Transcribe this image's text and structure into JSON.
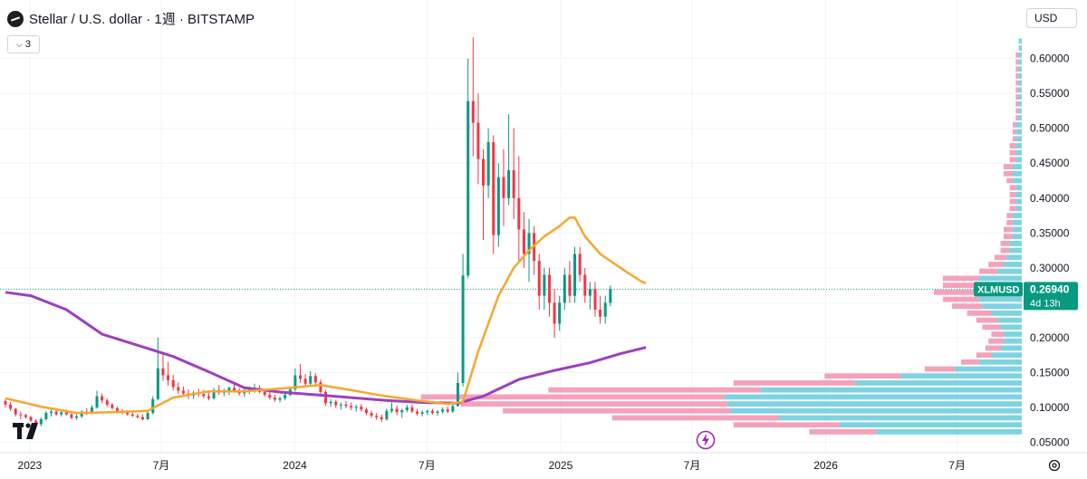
{
  "header": {
    "title": "Stellar / U.S. dollar · 1週 · BITSTAMP",
    "indicator_count": "3",
    "currency": "USD"
  },
  "colors": {
    "up": "#089981",
    "down": "#f23645",
    "ma_fast": "#f7a72e",
    "ma_slow": "#9c40c0",
    "price_label": "#089981",
    "vp_up": "#53c4d8",
    "vp_down": "#f07aa0"
  },
  "price_label": {
    "symbol": "XLMUSD",
    "price": "0.26940",
    "countdown": "4d 13h"
  },
  "chart_data": {
    "type": "candlestick",
    "title": "Stellar / U.S. dollar · 1週 · BITSTAMP",
    "x_range": [
      "2022-11-21",
      "2026-09-28"
    ],
    "y_range": [
      0.035,
      0.645
    ],
    "y_ticks": [
      0.05,
      0.1,
      0.15,
      0.2,
      0.25,
      0.3,
      0.35,
      0.4,
      0.45,
      0.5,
      0.55,
      0.6
    ],
    "y_tick_labels": [
      "0.05000",
      "0.10000",
      "0.15000",
      "0.20000",
      "0.25000",
      "0.30000",
      "0.35000",
      "0.40000",
      "0.45000",
      "0.50000",
      "0.55000",
      "0.60000"
    ],
    "x_ticks": [
      {
        "date": "2023-01-01",
        "label": "2023"
      },
      {
        "date": "2023-07-01",
        "label": "7月"
      },
      {
        "date": "2024-01-01",
        "label": "2024"
      },
      {
        "date": "2024-07-01",
        "label": "7月"
      },
      {
        "date": "2025-01-01",
        "label": "2025"
      },
      {
        "date": "2025-07-01",
        "label": "7月"
      },
      {
        "date": "2026-01-01",
        "label": "2026"
      },
      {
        "date": "2026-07-01",
        "label": "7月"
      }
    ],
    "last_price": 0.2694,
    "candle_ohlc": [
      [
        0.109,
        0.112,
        0.1,
        0.104
      ],
      [
        0.104,
        0.108,
        0.095,
        0.098
      ],
      [
        0.098,
        0.099,
        0.087,
        0.09
      ],
      [
        0.09,
        0.094,
        0.083,
        0.089
      ],
      [
        0.089,
        0.091,
        0.084,
        0.086
      ],
      [
        0.086,
        0.088,
        0.079,
        0.081
      ],
      [
        0.081,
        0.083,
        0.074,
        0.076
      ],
      [
        0.076,
        0.086,
        0.073,
        0.083
      ],
      [
        0.083,
        0.095,
        0.081,
        0.092
      ],
      [
        0.092,
        0.098,
        0.087,
        0.094
      ],
      [
        0.094,
        0.099,
        0.088,
        0.09
      ],
      [
        0.09,
        0.096,
        0.087,
        0.093
      ],
      [
        0.093,
        0.097,
        0.088,
        0.09
      ],
      [
        0.09,
        0.092,
        0.083,
        0.085
      ],
      [
        0.085,
        0.09,
        0.082,
        0.087
      ],
      [
        0.087,
        0.096,
        0.085,
        0.094
      ],
      [
        0.094,
        0.099,
        0.089,
        0.092
      ],
      [
        0.092,
        0.103,
        0.09,
        0.1
      ],
      [
        0.1,
        0.124,
        0.098,
        0.116
      ],
      [
        0.116,
        0.12,
        0.106,
        0.11
      ],
      [
        0.11,
        0.113,
        0.101,
        0.104
      ],
      [
        0.104,
        0.106,
        0.097,
        0.099
      ],
      [
        0.099,
        0.101,
        0.093,
        0.095
      ],
      [
        0.095,
        0.098,
        0.09,
        0.093
      ],
      [
        0.093,
        0.096,
        0.088,
        0.09
      ],
      [
        0.09,
        0.093,
        0.086,
        0.088
      ],
      [
        0.088,
        0.091,
        0.084,
        0.086
      ],
      [
        0.086,
        0.09,
        0.081,
        0.083
      ],
      [
        0.083,
        0.095,
        0.082,
        0.092
      ],
      [
        0.092,
        0.116,
        0.09,
        0.112
      ],
      [
        0.112,
        0.2,
        0.11,
        0.156
      ],
      [
        0.156,
        0.178,
        0.138,
        0.146
      ],
      [
        0.146,
        0.165,
        0.131,
        0.139
      ],
      [
        0.139,
        0.147,
        0.124,
        0.129
      ],
      [
        0.129,
        0.136,
        0.119,
        0.124
      ],
      [
        0.124,
        0.13,
        0.116,
        0.12
      ],
      [
        0.12,
        0.126,
        0.112,
        0.117
      ],
      [
        0.117,
        0.124,
        0.112,
        0.121
      ],
      [
        0.121,
        0.127,
        0.115,
        0.119
      ],
      [
        0.119,
        0.125,
        0.113,
        0.116
      ],
      [
        0.116,
        0.122,
        0.11,
        0.113
      ],
      [
        0.113,
        0.128,
        0.111,
        0.125
      ],
      [
        0.125,
        0.132,
        0.118,
        0.121
      ],
      [
        0.121,
        0.127,
        0.116,
        0.123
      ],
      [
        0.123,
        0.13,
        0.118,
        0.128
      ],
      [
        0.128,
        0.133,
        0.121,
        0.124
      ],
      [
        0.124,
        0.128,
        0.117,
        0.12
      ],
      [
        0.12,
        0.126,
        0.115,
        0.122
      ],
      [
        0.122,
        0.13,
        0.119,
        0.126
      ],
      [
        0.126,
        0.134,
        0.121,
        0.128
      ],
      [
        0.128,
        0.132,
        0.12,
        0.122
      ],
      [
        0.122,
        0.126,
        0.115,
        0.118
      ],
      [
        0.118,
        0.122,
        0.111,
        0.114
      ],
      [
        0.114,
        0.118,
        0.108,
        0.111
      ],
      [
        0.111,
        0.116,
        0.107,
        0.113
      ],
      [
        0.113,
        0.121,
        0.11,
        0.118
      ],
      [
        0.118,
        0.129,
        0.116,
        0.126
      ],
      [
        0.126,
        0.156,
        0.123,
        0.146
      ],
      [
        0.146,
        0.162,
        0.135,
        0.141
      ],
      [
        0.141,
        0.148,
        0.129,
        0.134
      ],
      [
        0.134,
        0.152,
        0.131,
        0.145
      ],
      [
        0.145,
        0.149,
        0.132,
        0.136
      ],
      [
        0.136,
        0.14,
        0.119,
        0.122
      ],
      [
        0.122,
        0.125,
        0.102,
        0.106
      ],
      [
        0.106,
        0.112,
        0.101,
        0.108
      ],
      [
        0.108,
        0.111,
        0.099,
        0.103
      ],
      [
        0.103,
        0.107,
        0.097,
        0.104
      ],
      [
        0.104,
        0.109,
        0.099,
        0.102
      ],
      [
        0.102,
        0.107,
        0.096,
        0.1
      ],
      [
        0.1,
        0.104,
        0.094,
        0.101
      ],
      [
        0.101,
        0.105,
        0.094,
        0.097
      ],
      [
        0.097,
        0.1,
        0.089,
        0.092
      ],
      [
        0.092,
        0.095,
        0.085,
        0.088
      ],
      [
        0.088,
        0.092,
        0.082,
        0.086
      ],
      [
        0.086,
        0.09,
        0.079,
        0.083
      ],
      [
        0.083,
        0.098,
        0.081,
        0.095
      ],
      [
        0.095,
        0.107,
        0.092,
        0.098
      ],
      [
        0.098,
        0.103,
        0.089,
        0.093
      ],
      [
        0.093,
        0.098,
        0.085,
        0.096
      ],
      [
        0.096,
        0.104,
        0.093,
        0.1
      ],
      [
        0.1,
        0.104,
        0.092,
        0.094
      ],
      [
        0.094,
        0.098,
        0.088,
        0.091
      ],
      [
        0.091,
        0.096,
        0.087,
        0.093
      ],
      [
        0.093,
        0.097,
        0.089,
        0.095
      ],
      [
        0.095,
        0.098,
        0.09,
        0.092
      ],
      [
        0.092,
        0.096,
        0.088,
        0.094
      ],
      [
        0.094,
        0.1,
        0.091,
        0.097
      ],
      [
        0.097,
        0.101,
        0.092,
        0.094
      ],
      [
        0.094,
        0.104,
        0.092,
        0.102
      ],
      [
        0.102,
        0.15,
        0.101,
        0.135
      ],
      [
        0.135,
        0.32,
        0.13,
        0.289
      ],
      [
        0.289,
        0.6,
        0.285,
        0.539
      ],
      [
        0.539,
        0.63,
        0.46,
        0.508
      ],
      [
        0.508,
        0.55,
        0.42,
        0.456
      ],
      [
        0.456,
        0.47,
        0.34,
        0.418
      ],
      [
        0.418,
        0.5,
        0.4,
        0.48
      ],
      [
        0.48,
        0.49,
        0.32,
        0.347
      ],
      [
        0.347,
        0.45,
        0.33,
        0.43
      ],
      [
        0.43,
        0.47,
        0.36,
        0.4
      ],
      [
        0.4,
        0.52,
        0.39,
        0.44
      ],
      [
        0.44,
        0.5,
        0.37,
        0.4
      ],
      [
        0.4,
        0.46,
        0.31,
        0.355
      ],
      [
        0.355,
        0.38,
        0.3,
        0.32
      ],
      [
        0.32,
        0.37,
        0.28,
        0.35
      ],
      [
        0.35,
        0.36,
        0.29,
        0.31
      ],
      [
        0.31,
        0.32,
        0.24,
        0.26
      ],
      [
        0.26,
        0.3,
        0.24,
        0.29
      ],
      [
        0.29,
        0.3,
        0.23,
        0.25
      ],
      [
        0.25,
        0.27,
        0.2,
        0.22
      ],
      [
        0.22,
        0.26,
        0.21,
        0.25
      ],
      [
        0.25,
        0.3,
        0.24,
        0.29
      ],
      [
        0.29,
        0.31,
        0.25,
        0.26
      ],
      [
        0.26,
        0.33,
        0.25,
        0.32
      ],
      [
        0.32,
        0.33,
        0.28,
        0.29
      ],
      [
        0.29,
        0.3,
        0.25,
        0.26
      ],
      [
        0.26,
        0.28,
        0.24,
        0.27
      ],
      [
        0.27,
        0.28,
        0.23,
        0.24
      ],
      [
        0.24,
        0.26,
        0.22,
        0.23
      ],
      [
        0.23,
        0.26,
        0.22,
        0.25
      ],
      [
        0.25,
        0.275,
        0.245,
        0.2694
      ]
    ],
    "ma_fast": [
      [
        0,
        0.113
      ],
      [
        7,
        0.101
      ],
      [
        14,
        0.092
      ],
      [
        21,
        0.093
      ],
      [
        28,
        0.095
      ],
      [
        33,
        0.114
      ],
      [
        40,
        0.123
      ],
      [
        47,
        0.123
      ],
      [
        56,
        0.128
      ],
      [
        62,
        0.132
      ],
      [
        67,
        0.126
      ],
      [
        74,
        0.117
      ],
      [
        81,
        0.11
      ],
      [
        87,
        0.105
      ],
      [
        90,
        0.108
      ],
      [
        93,
        0.18
      ],
      [
        97,
        0.26
      ],
      [
        100,
        0.3
      ],
      [
        103,
        0.325
      ],
      [
        106,
        0.345
      ],
      [
        109,
        0.36
      ],
      [
        111,
        0.372
      ],
      [
        112,
        0.372
      ],
      [
        114,
        0.345
      ],
      [
        117,
        0.32
      ],
      [
        120,
        0.305
      ],
      [
        122,
        0.295
      ],
      [
        125,
        0.281
      ],
      [
        126,
        0.278
      ]
    ],
    "ma_slow": [
      [
        0,
        0.265
      ],
      [
        5,
        0.26
      ],
      [
        12,
        0.24
      ],
      [
        19,
        0.205
      ],
      [
        26,
        0.189
      ],
      [
        33,
        0.173
      ],
      [
        40,
        0.151
      ],
      [
        47,
        0.128
      ],
      [
        54,
        0.122
      ],
      [
        61,
        0.118
      ],
      [
        68,
        0.114
      ],
      [
        75,
        0.11
      ],
      [
        82,
        0.107
      ],
      [
        89,
        0.106
      ],
      [
        94,
        0.116
      ],
      [
        101,
        0.14
      ],
      [
        108,
        0.153
      ],
      [
        115,
        0.164
      ],
      [
        121,
        0.177
      ],
      [
        126,
        0.186
      ]
    ],
    "volume_profile": [
      {
        "price": 0.065,
        "up": 0.48,
        "down": 0.22
      },
      {
        "price": 0.075,
        "up": 0.6,
        "down": 0.35
      },
      {
        "price": 0.085,
        "up": 0.8,
        "down": 0.55
      },
      {
        "price": 0.095,
        "up": 0.96,
        "down": 0.75
      },
      {
        "price": 0.105,
        "up": 0.97,
        "down": 0.88
      },
      {
        "price": 0.115,
        "up": 0.98,
        "down": 1.0
      },
      {
        "price": 0.125,
        "up": 0.86,
        "down": 0.7
      },
      {
        "price": 0.135,
        "up": 0.55,
        "down": 0.4
      },
      {
        "price": 0.145,
        "up": 0.4,
        "down": 0.25
      },
      {
        "price": 0.155,
        "up": 0.22,
        "down": 0.1
      },
      {
        "price": 0.165,
        "up": 0.14,
        "down": 0.06
      },
      {
        "price": 0.175,
        "up": 0.1,
        "down": 0.05
      },
      {
        "price": 0.185,
        "up": 0.07,
        "down": 0.05
      },
      {
        "price": 0.195,
        "up": 0.06,
        "down": 0.05
      },
      {
        "price": 0.205,
        "up": 0.06,
        "down": 0.04
      },
      {
        "price": 0.215,
        "up": 0.07,
        "down": 0.06
      },
      {
        "price": 0.225,
        "up": 0.08,
        "down": 0.07
      },
      {
        "price": 0.235,
        "up": 0.1,
        "down": 0.08
      },
      {
        "price": 0.245,
        "up": 0.13,
        "down": 0.1
      },
      {
        "price": 0.255,
        "up": 0.14,
        "down": 0.12
      },
      {
        "price": 0.265,
        "up": 0.15,
        "down": 0.14
      },
      {
        "price": 0.275,
        "up": 0.14,
        "down": 0.12
      },
      {
        "price": 0.285,
        "up": 0.14,
        "down": 0.12
      },
      {
        "price": 0.295,
        "up": 0.08,
        "down": 0.06
      },
      {
        "price": 0.305,
        "up": 0.06,
        "down": 0.05
      },
      {
        "price": 0.315,
        "up": 0.05,
        "down": 0.04
      },
      {
        "price": 0.325,
        "up": 0.04,
        "down": 0.03
      },
      {
        "price": 0.335,
        "up": 0.04,
        "down": 0.03
      },
      {
        "price": 0.345,
        "up": 0.03,
        "down": 0.03
      },
      {
        "price": 0.355,
        "up": 0.03,
        "down": 0.03
      },
      {
        "price": 0.365,
        "up": 0.03,
        "down": 0.02
      },
      {
        "price": 0.375,
        "up": 0.03,
        "down": 0.02
      },
      {
        "price": 0.385,
        "up": 0.02,
        "down": 0.02
      },
      {
        "price": 0.395,
        "up": 0.02,
        "down": 0.02
      },
      {
        "price": 0.405,
        "up": 0.02,
        "down": 0.02
      },
      {
        "price": 0.415,
        "up": 0.02,
        "down": 0.02
      },
      {
        "price": 0.425,
        "up": 0.03,
        "down": 0.02
      },
      {
        "price": 0.435,
        "up": 0.03,
        "down": 0.03
      },
      {
        "price": 0.445,
        "up": 0.03,
        "down": 0.03
      },
      {
        "price": 0.455,
        "up": 0.02,
        "down": 0.02
      },
      {
        "price": 0.465,
        "up": 0.02,
        "down": 0.02
      },
      {
        "price": 0.475,
        "up": 0.02,
        "down": 0.02
      },
      {
        "price": 0.485,
        "up": 0.02,
        "down": 0.01
      },
      {
        "price": 0.495,
        "up": 0.02,
        "down": 0.01
      },
      {
        "price": 0.505,
        "up": 0.02,
        "down": 0.01
      },
      {
        "price": 0.515,
        "up": 0.01,
        "down": 0.01
      },
      {
        "price": 0.525,
        "up": 0.01,
        "down": 0.01
      },
      {
        "price": 0.535,
        "up": 0.01,
        "down": 0.01
      },
      {
        "price": 0.545,
        "up": 0.01,
        "down": 0.01
      },
      {
        "price": 0.555,
        "up": 0.01,
        "down": 0.01
      },
      {
        "price": 0.565,
        "up": 0.01,
        "down": 0.01
      },
      {
        "price": 0.575,
        "up": 0.01,
        "down": 0.01
      },
      {
        "price": 0.585,
        "up": 0.01,
        "down": 0.01
      },
      {
        "price": 0.595,
        "up": 0.01,
        "down": 0.01
      },
      {
        "price": 0.605,
        "up": 0.01,
        "down": 0.01
      },
      {
        "price": 0.615,
        "up": 0.01,
        "down": 0.0
      },
      {
        "price": 0.625,
        "up": 0.01,
        "down": 0.0
      }
    ]
  }
}
